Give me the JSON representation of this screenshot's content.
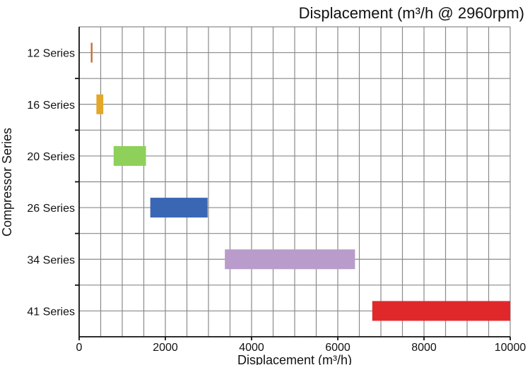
{
  "chart_data": {
    "type": "bar",
    "orientation": "horizontal",
    "title": "Displacement (m³/h @ 2960rpm)",
    "xlabel": "Displacement (m³/h)",
    "ylabel": "Compressor Series",
    "xlim": [
      0,
      10000
    ],
    "xticks": [
      "0",
      "2000",
      "4000",
      "6000",
      "8000",
      "10000"
    ],
    "grid": true,
    "categories": [
      "12 Series",
      "16 Series",
      "20 Series",
      "26 Series",
      "34 Series",
      "41 Series"
    ],
    "ranges": [
      {
        "category": "12 Series",
        "start": 270,
        "end": 310,
        "color": "#c8723a"
      },
      {
        "category": "16 Series",
        "start": 400,
        "end": 560,
        "color": "#e3a82a"
      },
      {
        "category": "20 Series",
        "start": 800,
        "end": 1550,
        "color": "#8fd05a"
      },
      {
        "category": "26 Series",
        "start": 1650,
        "end": 2980,
        "color": "#3a67b4"
      },
      {
        "category": "34 Series",
        "start": 3380,
        "end": 6400,
        "color": "#b99ccb"
      },
      {
        "category": "41 Series",
        "start": 6800,
        "end": 10000,
        "color": "#e0282a"
      }
    ]
  }
}
